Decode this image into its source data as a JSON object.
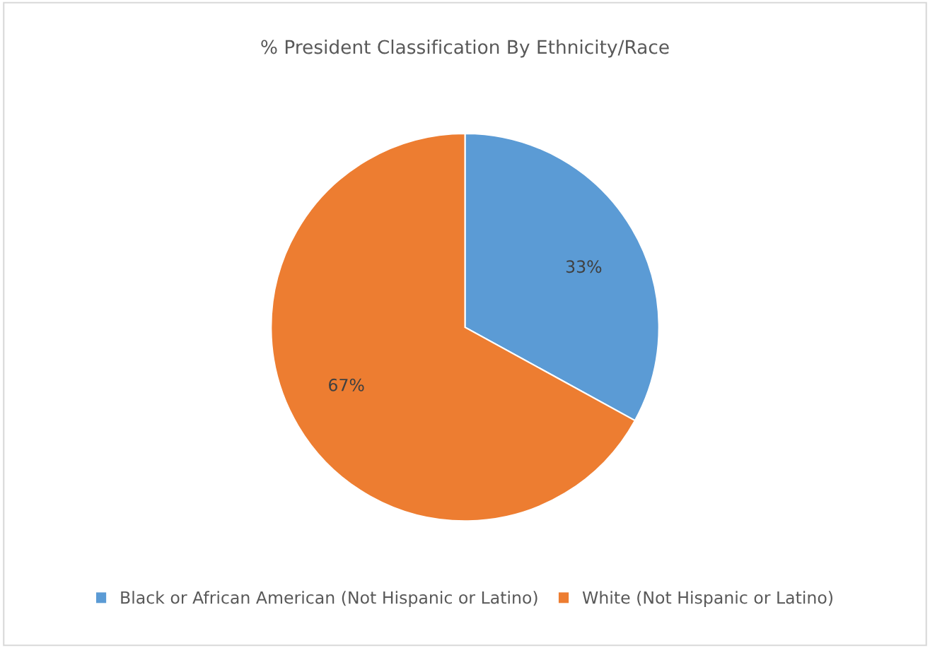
{
  "chart_data": {
    "type": "pie",
    "title": "% President Classification By Ethnicity/Race",
    "categories": [
      "Black or African American (Not Hispanic or Latino)",
      "White (Not Hispanic or Latino)"
    ],
    "values": [
      33,
      67
    ],
    "colors": [
      "#5b9bd5",
      "#ed7d31"
    ],
    "value_labels": [
      "33%",
      "67%"
    ],
    "legend": "bottom"
  }
}
